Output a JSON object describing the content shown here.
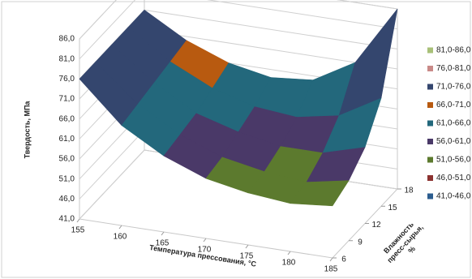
{
  "chart_data": {
    "type": "surface",
    "y_label": "Твердость, МПа",
    "x_label": "Температура прессования, °С",
    "depth_label": [
      "Влажность",
      "пресс-сырья,",
      "%"
    ],
    "x": [
      155,
      160,
      165,
      170,
      175,
      180,
      185
    ],
    "xlim": [
      155,
      185
    ],
    "xticks": [
      155,
      160,
      165,
      170,
      175,
      180,
      185
    ],
    "depth": [
      6,
      9,
      12,
      15,
      18
    ],
    "depthlim": [
      6,
      18
    ],
    "depthticks": [
      6,
      9,
      12,
      15,
      18
    ],
    "zlim": [
      41,
      86
    ],
    "zticks": [
      {
        "value": 41,
        "label": "41,0"
      },
      {
        "value": 46,
        "label": "46,0"
      },
      {
        "value": 51,
        "label": "51,0"
      },
      {
        "value": 56,
        "label": "56,0"
      },
      {
        "value": 61,
        "label": "61,0"
      },
      {
        "value": 66,
        "label": "66,0"
      },
      {
        "value": 71,
        "label": "71,0"
      },
      {
        "value": 76,
        "label": "76,0"
      },
      {
        "value": 81,
        "label": "81,0"
      },
      {
        "value": 86,
        "label": "86,0"
      }
    ],
    "values": [
      [
        76,
        66,
        60,
        56,
        54,
        53,
        54
      ],
      [
        76,
        67,
        61,
        57,
        55,
        54,
        56
      ],
      [
        76,
        68,
        62,
        59,
        57,
        57,
        60
      ],
      [
        76,
        69,
        64,
        61,
        60,
        62,
        68
      ],
      [
        76,
        70,
        66,
        64,
        65,
        71,
        86
      ]
    ],
    "bands": [
      {
        "label": "41,0-46,0",
        "from": 41,
        "to": 46,
        "color": "#2c5d8f"
      },
      {
        "label": "46,0-51,0",
        "from": 46,
        "to": 51,
        "color": "#8c3230"
      },
      {
        "label": "51,0-56,0",
        "from": 51,
        "to": 56,
        "color": "#5c7a2e"
      },
      {
        "label": "56,0-61,0",
        "from": 56,
        "to": 61,
        "color": "#4a3968"
      },
      {
        "label": "61,0-66,0",
        "from": 61,
        "to": 66,
        "color": "#23687c"
      },
      {
        "label": "66,0-71,0",
        "from": 66,
        "to": 71,
        "color": "#b85a10"
      },
      {
        "label": "71,0-76,0",
        "from": 71,
        "to": 76,
        "color": "#34466e"
      },
      {
        "label": "76,0-81,0",
        "from": 76,
        "to": 81,
        "color": "#c98a88"
      },
      {
        "label": "81,0-86,0",
        "from": 81,
        "to": 86,
        "color": "#a8c078"
      }
    ]
  }
}
